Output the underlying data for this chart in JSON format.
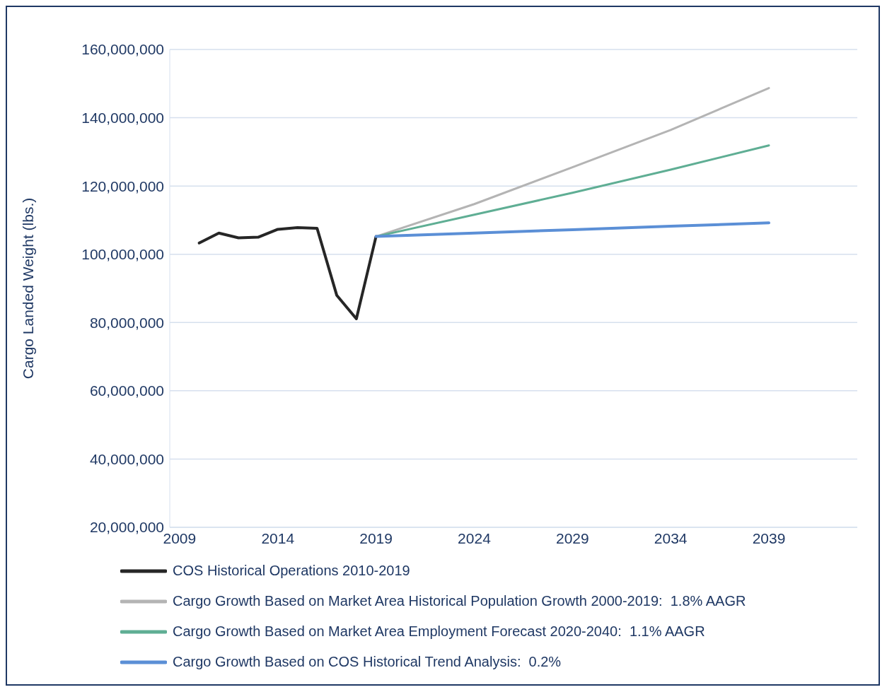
{
  "chart_data": {
    "type": "line",
    "ylabel": "Cargo Landed Weight (lbs.)",
    "xlim": [
      2008.5,
      2043.5
    ],
    "xticks": [
      2009,
      2014,
      2019,
      2024,
      2029,
      2034,
      2039
    ],
    "ylim": [
      20000000,
      160000000
    ],
    "yticks": [
      {
        "value": 20000000,
        "label": "20,000,000"
      },
      {
        "value": 40000000,
        "label": "40,000,000"
      },
      {
        "value": 60000000,
        "label": "60,000,000"
      },
      {
        "value": 80000000,
        "label": "80,000,000"
      },
      {
        "value": 100000000,
        "label": "100,000,000"
      },
      {
        "value": 120000000,
        "label": "120,000,000"
      },
      {
        "value": 140000000,
        "label": "140,000,000"
      },
      {
        "value": 160000000,
        "label": "160,000,000"
      }
    ],
    "grid": "y",
    "legend": "bottom",
    "marker": "none",
    "line_style": "solid",
    "series": [
      {
        "name": "COS Historical Operations 2010-2019",
        "color": "#262626",
        "x": [
          2010,
          2011,
          2012,
          2013,
          2014,
          2015,
          2016,
          2017,
          2018,
          2019
        ],
        "values": [
          103300000,
          106200000,
          104800000,
          105000000,
          107300000,
          107800000,
          107600000,
          88000000,
          81100000,
          105200000
        ]
      },
      {
        "name": "Cargo Growth Based on Market Area Historical Population Growth 2000-2019:  1.8% AAGR",
        "color": "#b4b4b4",
        "x": [
          2019,
          2024,
          2029,
          2034,
          2039
        ],
        "values": [
          105200000,
          114700000,
          125500000,
          136400000,
          148700000
        ]
      },
      {
        "name": "Cargo Growth Based on Market Area Employment Forecast 2020-2040:  1.1% AAGR",
        "color": "#5fae94",
        "x": [
          2019,
          2024,
          2029,
          2034,
          2039
        ],
        "values": [
          105200000,
          111600000,
          118000000,
          124800000,
          131900000
        ]
      },
      {
        "name": "Cargo Growth Based on COS Historical Trend Analysis:  0.2%",
        "color": "#5b8fd6",
        "x": [
          2019,
          2024,
          2029,
          2034,
          2039
        ],
        "values": [
          105200000,
          106200000,
          107200000,
          108200000,
          109200000
        ]
      }
    ]
  }
}
